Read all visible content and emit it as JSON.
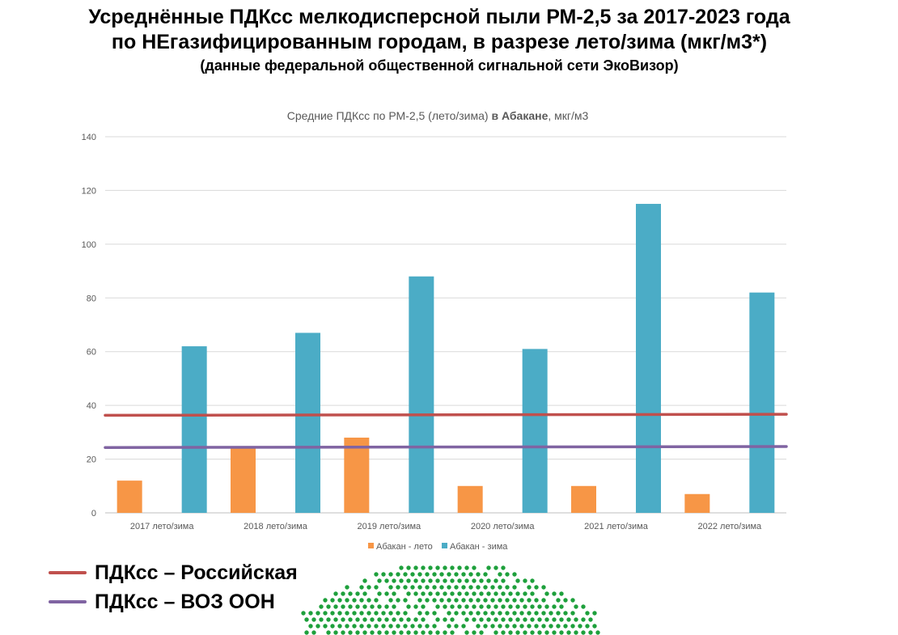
{
  "header": {
    "line1": "Усреднённые ПДКсс мелкодисперсной пыли РМ-2,5 за 2017-2023 года",
    "line2": "по НЕгазифицированным городам, в разрезе лето/зима (мкг/м3*)",
    "line3": "(данные федеральной общественной сигнальной сети ЭкоВизор)"
  },
  "chart_data": {
    "type": "bar",
    "title_prefix": "Средние ПДКсс по РМ-2,5 (лето/зима) ",
    "title_bold": "в Абакане",
    "title_suffix": ", мкг/м3",
    "categories": [
      "2017 лето/зима",
      "2018 лето/зима",
      "2019 лето/зима",
      "2020 лето/зима",
      "2021 лето/зима",
      "2022 лето/зима"
    ],
    "series": [
      {
        "name": "Абакан - лето",
        "color": "#f79646",
        "values": [
          12,
          24,
          28,
          10,
          10,
          7
        ]
      },
      {
        "name": "Абакан  - зима",
        "color": "#4bacc6",
        "values": [
          62,
          67,
          88,
          61,
          115,
          82
        ]
      }
    ],
    "reference_lines": [
      {
        "name": "ПДКсс – Российская",
        "color": "#c0504d",
        "value": 36.5
      },
      {
        "name": "ПДКсс – ВОЗ ООН",
        "color": "#8064a2",
        "value": 24.5
      }
    ],
    "ylim": [
      0,
      140
    ],
    "yticks": [
      0,
      20,
      40,
      60,
      80,
      100,
      120,
      140
    ],
    "grid": true,
    "legend_position": "bottom"
  },
  "decor": {
    "dots_color": "#1ea03c",
    "dots_icon": "green-dot-globe-logo"
  }
}
